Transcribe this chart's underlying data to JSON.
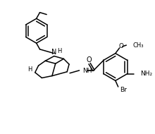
{
  "bg_color": "#ffffff",
  "line_color": "#000000",
  "lw": 1.1,
  "figsize": [
    2.2,
    1.9
  ],
  "dpi": 100,
  "xlim": [
    0,
    220
  ],
  "ylim": [
    0,
    190
  ]
}
